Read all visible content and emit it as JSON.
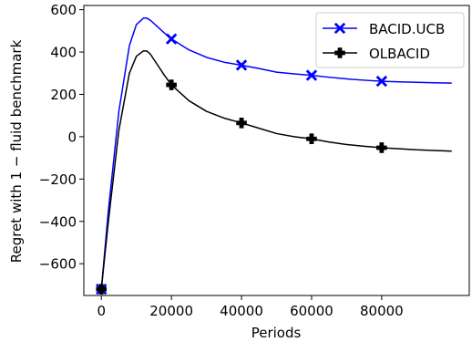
{
  "chart_data": {
    "type": "line",
    "xlabel": "Periods",
    "ylabel": "Regret with 1 − fluid benchmark",
    "xlim": [
      -5000,
      105000
    ],
    "ylim": [
      -750,
      620
    ],
    "x_ticks": [
      0,
      20000,
      40000,
      60000,
      80000
    ],
    "y_ticks": [
      -600,
      -400,
      -200,
      0,
      200,
      400,
      600
    ],
    "x_tick_labels": [
      "0",
      "20000",
      "40000",
      "60000",
      "80000"
    ],
    "y_tick_labels": [
      "−600",
      "−400",
      "−200",
      "0",
      "200",
      "400",
      "600"
    ],
    "grid": false,
    "legend_position": "upper right",
    "series": [
      {
        "name": "BACID.UCB",
        "color": "#0000ff",
        "marker": "x-filled",
        "x": [
          0,
          2000,
          5000,
          8000,
          10000,
          12000,
          13000,
          14000,
          16000,
          18000,
          20000,
          25000,
          30000,
          35000,
          40000,
          45000,
          50000,
          55000,
          60000,
          65000,
          70000,
          75000,
          80000,
          85000,
          90000,
          95000,
          100000
        ],
        "y": [
          -720,
          -350,
          120,
          430,
          530,
          560,
          560,
          550,
          520,
          490,
          462,
          410,
          375,
          352,
          338,
          322,
          305,
          297,
          290,
          281,
          273,
          267,
          262,
          259,
          257,
          255,
          253
        ],
        "marker_x": [
          0,
          20000,
          40000,
          60000,
          80000
        ],
        "marker_y": [
          -720,
          462,
          338,
          290,
          262
        ]
      },
      {
        "name": "OLBACID",
        "color": "#000000",
        "marker": "P",
        "x": [
          0,
          2000,
          5000,
          8000,
          10000,
          12000,
          13000,
          14000,
          16000,
          18000,
          20000,
          25000,
          30000,
          35000,
          40000,
          45000,
          50000,
          55000,
          60000,
          65000,
          70000,
          75000,
          80000,
          85000,
          90000,
          95000,
          100000
        ],
        "y": [
          -720,
          -400,
          30,
          300,
          380,
          405,
          405,
          390,
          340,
          290,
          245,
          170,
          120,
          88,
          65,
          40,
          15,
          0,
          -10,
          -25,
          -37,
          -45,
          -52,
          -57,
          -62,
          -65,
          -68
        ],
        "marker_x": [
          0,
          20000,
          40000,
          60000,
          80000
        ],
        "marker_y": [
          -720,
          245,
          65,
          -10,
          -52
        ]
      }
    ]
  }
}
